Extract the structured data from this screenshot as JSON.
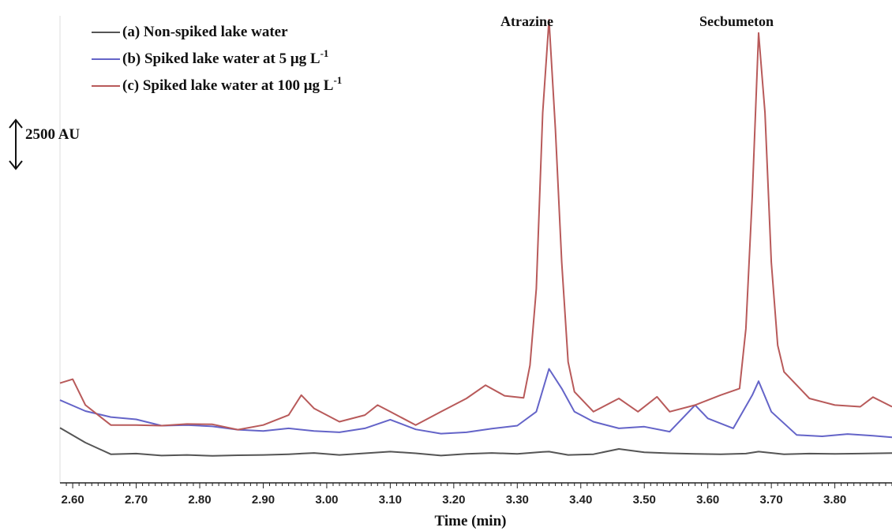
{
  "chart_data": {
    "type": "line",
    "xlabel": "Time (min)",
    "x_ticks": [
      "2.60",
      "2.70",
      "2.80",
      "2.90",
      "3.00",
      "3.10",
      "3.20",
      "3.30",
      "3.40",
      "3.50",
      "3.60",
      "3.70",
      "3.80"
    ],
    "xlim": [
      2.58,
      3.89
    ],
    "scale_bar_label": "2500 AU",
    "peak_labels": [
      {
        "text": "Atrazine",
        "x": 3.35
      },
      {
        "text": "Secbumeton",
        "x": 3.68
      }
    ],
    "legend_position": "top-left",
    "series": [
      {
        "name": "(a) Non-spiked lake water",
        "color": "#555555",
        "points": [
          [
            2.58,
            1015
          ],
          [
            2.62,
            570
          ],
          [
            2.66,
            220
          ],
          [
            2.7,
            240
          ],
          [
            2.74,
            180
          ],
          [
            2.78,
            200
          ],
          [
            2.82,
            170
          ],
          [
            2.86,
            190
          ],
          [
            2.9,
            200
          ],
          [
            2.94,
            220
          ],
          [
            2.98,
            260
          ],
          [
            3.02,
            200
          ],
          [
            3.06,
            250
          ],
          [
            3.1,
            300
          ],
          [
            3.14,
            250
          ],
          [
            3.18,
            180
          ],
          [
            3.22,
            230
          ],
          [
            3.26,
            260
          ],
          [
            3.3,
            230
          ],
          [
            3.34,
            290
          ],
          [
            3.35,
            300
          ],
          [
            3.38,
            200
          ],
          [
            3.42,
            220
          ],
          [
            3.46,
            380
          ],
          [
            3.5,
            280
          ],
          [
            3.54,
            250
          ],
          [
            3.58,
            230
          ],
          [
            3.62,
            220
          ],
          [
            3.66,
            240
          ],
          [
            3.68,
            300
          ],
          [
            3.72,
            220
          ],
          [
            3.76,
            240
          ],
          [
            3.8,
            230
          ],
          [
            3.84,
            240
          ],
          [
            3.89,
            255
          ]
        ]
      },
      {
        "name": "(b) Spiked lake water at 5 μg L-1",
        "color": "#6464c8",
        "points": [
          [
            2.58,
            1850
          ],
          [
            2.62,
            1520
          ],
          [
            2.66,
            1340
          ],
          [
            2.7,
            1270
          ],
          [
            2.74,
            1080
          ],
          [
            2.78,
            1100
          ],
          [
            2.82,
            1060
          ],
          [
            2.86,
            960
          ],
          [
            2.9,
            920
          ],
          [
            2.94,
            1000
          ],
          [
            2.98,
            920
          ],
          [
            3.02,
            880
          ],
          [
            3.06,
            1000
          ],
          [
            3.1,
            1260
          ],
          [
            3.14,
            970
          ],
          [
            3.18,
            840
          ],
          [
            3.22,
            880
          ],
          [
            3.26,
            990
          ],
          [
            3.3,
            1080
          ],
          [
            3.33,
            1500
          ],
          [
            3.35,
            2790
          ],
          [
            3.37,
            2200
          ],
          [
            3.39,
            1500
          ],
          [
            3.42,
            1200
          ],
          [
            3.46,
            1000
          ],
          [
            3.5,
            1050
          ],
          [
            3.54,
            900
          ],
          [
            3.58,
            1700
          ],
          [
            3.6,
            1300
          ],
          [
            3.64,
            1000
          ],
          [
            3.67,
            2000
          ],
          [
            3.68,
            2420
          ],
          [
            3.7,
            1500
          ],
          [
            3.74,
            800
          ],
          [
            3.78,
            760
          ],
          [
            3.82,
            830
          ],
          [
            3.86,
            780
          ],
          [
            3.89,
            730
          ]
        ]
      },
      {
        "name": "(c) Spiked lake water at 100 μg L-1",
        "color": "#b85a5a",
        "points": [
          [
            2.58,
            2360
          ],
          [
            2.6,
            2480
          ],
          [
            2.62,
            1700
          ],
          [
            2.66,
            1100
          ],
          [
            2.7,
            1100
          ],
          [
            2.74,
            1080
          ],
          [
            2.78,
            1130
          ],
          [
            2.82,
            1120
          ],
          [
            2.86,
            960
          ],
          [
            2.9,
            1100
          ],
          [
            2.94,
            1400
          ],
          [
            2.96,
            2000
          ],
          [
            2.98,
            1600
          ],
          [
            3.02,
            1200
          ],
          [
            3.06,
            1400
          ],
          [
            3.08,
            1700
          ],
          [
            3.1,
            1500
          ],
          [
            3.14,
            1100
          ],
          [
            3.18,
            1500
          ],
          [
            3.22,
            1900
          ],
          [
            3.25,
            2300
          ],
          [
            3.28,
            1980
          ],
          [
            3.31,
            1920
          ],
          [
            3.32,
            2900
          ],
          [
            3.33,
            5200
          ],
          [
            3.34,
            10500
          ],
          [
            3.35,
            13300
          ],
          [
            3.36,
            10000
          ],
          [
            3.37,
            6000
          ],
          [
            3.38,
            3000
          ],
          [
            3.39,
            2100
          ],
          [
            3.42,
            1500
          ],
          [
            3.46,
            1900
          ],
          [
            3.49,
            1500
          ],
          [
            3.52,
            1950
          ],
          [
            3.54,
            1500
          ],
          [
            3.58,
            1700
          ],
          [
            3.62,
            2000
          ],
          [
            3.65,
            2200
          ],
          [
            3.66,
            4000
          ],
          [
            3.67,
            8000
          ],
          [
            3.68,
            12900
          ],
          [
            3.69,
            10500
          ],
          [
            3.7,
            6000
          ],
          [
            3.71,
            3500
          ],
          [
            3.72,
            2700
          ],
          [
            3.76,
            1900
          ],
          [
            3.8,
            1700
          ],
          [
            3.84,
            1650
          ],
          [
            3.86,
            1940
          ],
          [
            3.89,
            1650
          ]
        ]
      }
    ]
  }
}
